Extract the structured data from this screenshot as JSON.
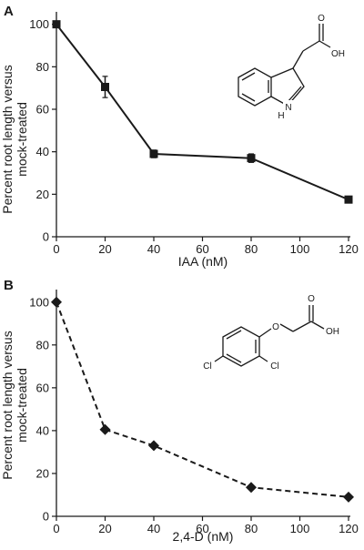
{
  "chart_data": [
    {
      "type": "line",
      "panel": "A",
      "xlabel": "IAA (nM)",
      "ylabel": [
        "Percent root length versus",
        "mock-treated"
      ],
      "x": [
        0,
        20,
        40,
        80,
        120
      ],
      "xticks": [
        "0",
        "20",
        "40",
        "60",
        "80",
        "100",
        "120"
      ],
      "yticks": [
        "0",
        "20",
        "40",
        "60",
        "80",
        "100"
      ],
      "xlim": [
        0,
        120
      ],
      "ylim": [
        0,
        105
      ],
      "marker": "square",
      "line_style": "solid",
      "series": [
        {
          "values": [
            100,
            70.5,
            39,
            37,
            17.5
          ],
          "errors": [
            0,
            5,
            1.8,
            2,
            1.5
          ]
        }
      ],
      "molecule_labels": {
        "acid": "OH",
        "oxo": "O",
        "amine": "N",
        "hydrogen": "H"
      },
      "colors": {
        "line": "#1a1a1a",
        "marker": "#1a1a1a"
      }
    },
    {
      "type": "line",
      "panel": "B",
      "xlabel": "2,4-D (nM)",
      "ylabel": [
        "Percent root length versus",
        "mock-treated"
      ],
      "x": [
        0,
        20,
        40,
        80,
        120
      ],
      "xticks": [
        "0",
        "20",
        "40",
        "60",
        "80",
        "100",
        "120"
      ],
      "yticks": [
        "0",
        "20",
        "40",
        "60",
        "80",
        "100"
      ],
      "xlim": [
        0,
        120
      ],
      "ylim": [
        0,
        105
      ],
      "marker": "diamond",
      "line_style": "dashed",
      "series": [
        {
          "values": [
            100,
            40.5,
            33,
            13.5,
            9
          ]
        }
      ],
      "molecule_labels": {
        "acid": "OH",
        "oxo": "O",
        "ether": "O",
        "chloro1": "Cl",
        "chloro2": "Cl"
      },
      "colors": {
        "line": "#1a1a1a",
        "marker": "#1a1a1a"
      }
    }
  ]
}
